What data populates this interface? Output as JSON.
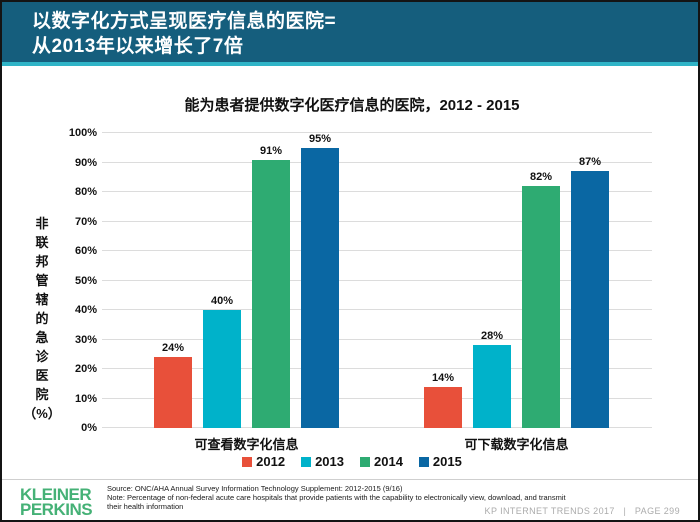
{
  "header": {
    "title_line1": "以数字化方式呈现医疗信息的医院=",
    "title_line2": "从2013年以来增长了7倍"
  },
  "chart_data": {
    "type": "bar",
    "title": "能为患者提供数字化医疗信息的医院，2012 - 2015",
    "categories": [
      "可查看数字化信息",
      "可下载数字化信息"
    ],
    "series": [
      {
        "name": "2012",
        "color": "#E8503A",
        "values": [
          24,
          14
        ]
      },
      {
        "name": "2013",
        "color": "#00B2CA",
        "values": [
          40,
          28
        ]
      },
      {
        "name": "2014",
        "color": "#2EAB72",
        "values": [
          91,
          82
        ]
      },
      {
        "name": "2015",
        "color": "#0A67A3",
        "values": [
          95,
          87
        ]
      }
    ],
    "value_suffix": "%",
    "ylabel": "非联邦管辖的急诊医院（%）",
    "ylabel_vertical_chars": [
      "非",
      "联",
      "邦",
      "管",
      "辖",
      "的",
      "急",
      "诊",
      "医",
      "院",
      "（%）"
    ],
    "ylim": [
      0,
      100
    ],
    "y_tick_step": 10,
    "y_tick_labels": [
      "100%",
      "90%",
      "80%",
      "70%",
      "60%",
      "50%",
      "40%",
      "30%",
      "20%",
      "10%",
      "0%"
    ],
    "grid": true,
    "legend_position": "bottom"
  },
  "footer": {
    "logo_line1": "KLEINER",
    "logo_line2": "PERKINS",
    "source_line1": "Source: ONC/AHA Annual Survey Information Technology Supplement: 2012-2015 (9/16)",
    "source_line2": "Note: Percentage of non-federal acute care hospitals that provide patients with the capability to electronically view, download, and transmit their health information",
    "page_info": "KP INTERNET TRENDS 2017   |   PAGE 299"
  },
  "colors": {
    "header_bg": "#155E7D",
    "header_accent": "#2FB4C7",
    "logo_green": "#45B176",
    "gridline": "#DCDCDC"
  }
}
